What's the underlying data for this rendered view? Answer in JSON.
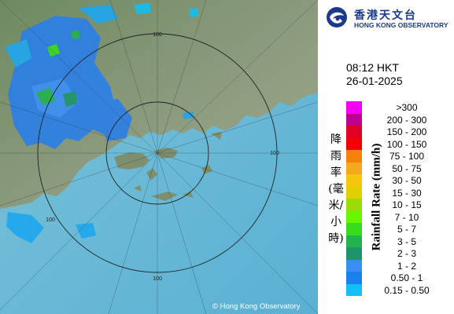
{
  "header": {
    "org_name_cn": "香港天文台",
    "org_name_en": "HONG KONG OBSERVATORY",
    "logo_icon": "hko-swirl-icon"
  },
  "timestamp": {
    "time": "08:12 HKT",
    "date": "26-01-2025"
  },
  "legend": {
    "title_cn": "降雨率(毫米/小時)",
    "title_en": "Rainfall Rate (mm/h)",
    "items": [
      {
        "label": ">300",
        "color": "#f400f4"
      },
      {
        "label": "200 - 300",
        "color": "#bd008f"
      },
      {
        "label": "150 - 200",
        "color": "#df0024"
      },
      {
        "label": "100 - 150",
        "color": "#f20000"
      },
      {
        "label": "75 - 100",
        "color": "#f4810c"
      },
      {
        "label": "50 - 75",
        "color": "#f3a81d"
      },
      {
        "label": "30 - 50",
        "color": "#f7c60c"
      },
      {
        "label": "15 - 30",
        "color": "#e1cf00"
      },
      {
        "label": "10 - 15",
        "color": "#9bdb08"
      },
      {
        "label": "7 - 10",
        "color": "#68f500"
      },
      {
        "label": "5 - 7",
        "color": "#39dc1d"
      },
      {
        "label": "3 - 5",
        "color": "#23b24d"
      },
      {
        "label": "2 - 3",
        "color": "#1d9469"
      },
      {
        "label": "1 - 2",
        "color": "#3a8ff7"
      },
      {
        "label": "0.50 - 1",
        "color": "#1a80ee"
      },
      {
        "label": "0.15 - 0.50",
        "color": "#12c0f3"
      }
    ]
  },
  "map": {
    "range_labels": [
      "100",
      "100",
      "100",
      "100"
    ],
    "copyright": "© Hong Kong Observatory"
  }
}
